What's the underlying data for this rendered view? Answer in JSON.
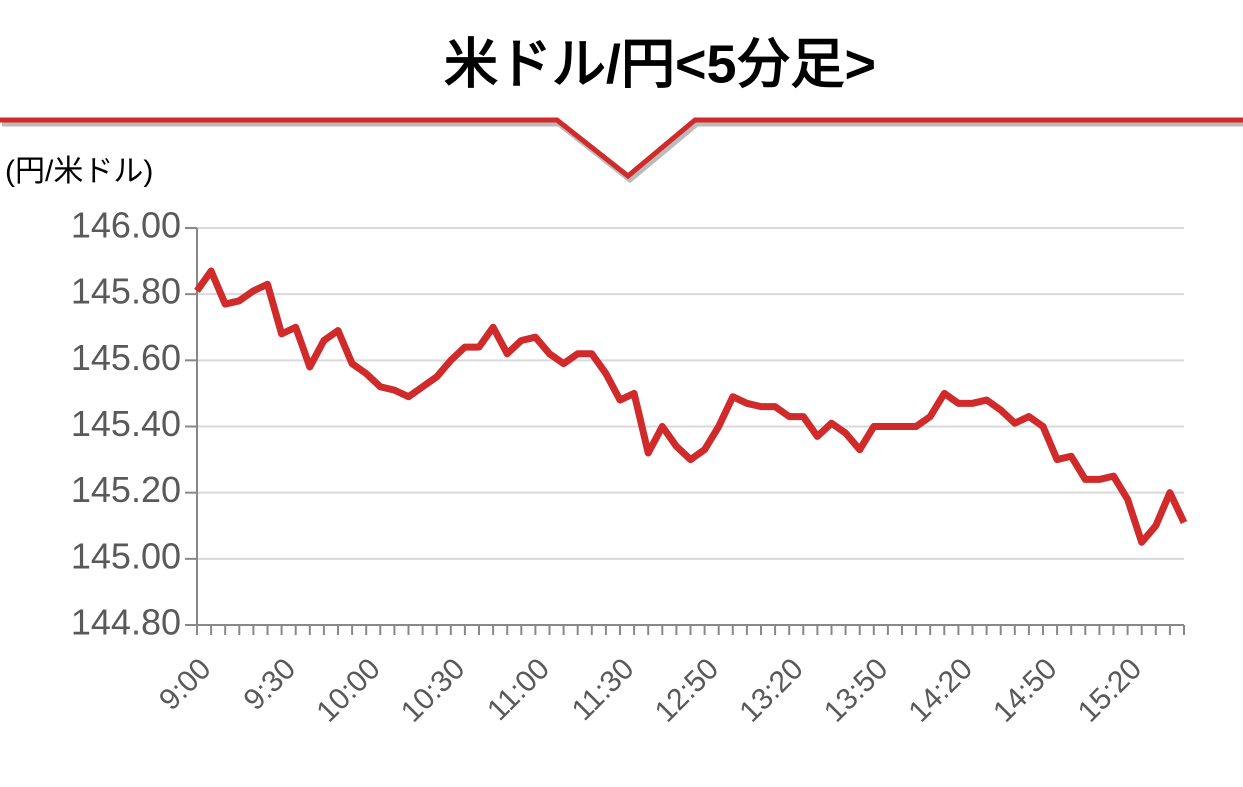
{
  "chart_data": {
    "type": "line",
    "title": "米ドル/円<5分足>",
    "y_label": "(円/米ドル)",
    "color": "#d02a2a",
    "grid": true,
    "categories": [
      "9:00",
      null,
      null,
      null,
      null,
      null,
      "9:30",
      null,
      null,
      null,
      null,
      null,
      "10:00",
      null,
      null,
      null,
      null,
      null,
      "10:30",
      null,
      null,
      null,
      null,
      null,
      "11:00",
      null,
      null,
      null,
      null,
      null,
      "11:30",
      null,
      null,
      null,
      null,
      null,
      "12:50",
      null,
      null,
      null,
      null,
      null,
      "13:20",
      null,
      null,
      null,
      null,
      null,
      "13:50",
      null,
      null,
      null,
      null,
      null,
      "14:20",
      null,
      null,
      null,
      null,
      null,
      "14:50",
      null,
      null,
      null,
      null,
      null,
      "15:20",
      null,
      null,
      null,
      null
    ],
    "values": [
      145.81,
      145.87,
      145.77,
      145.78,
      145.81,
      145.83,
      145.68,
      145.7,
      145.58,
      145.66,
      145.69,
      145.59,
      145.56,
      145.52,
      145.51,
      145.49,
      145.52,
      145.55,
      145.6,
      145.64,
      145.64,
      145.7,
      145.62,
      145.66,
      145.67,
      145.62,
      145.59,
      145.62,
      145.62,
      145.56,
      145.48,
      145.5,
      145.32,
      145.4,
      145.34,
      145.3,
      145.33,
      145.4,
      145.49,
      145.47,
      145.46,
      145.46,
      145.43,
      145.43,
      145.37,
      145.41,
      145.38,
      145.33,
      145.4,
      145.4,
      145.4,
      145.4,
      145.43,
      145.5,
      145.47,
      145.47,
      145.48,
      145.45,
      145.41,
      145.43,
      145.4,
      145.3,
      145.31,
      145.24,
      145.24,
      145.25,
      145.18,
      145.05,
      145.1,
      145.2,
      145.11
    ],
    "ylim": [
      144.8,
      146.0
    ],
    "yticks": [
      {
        "value": 144.8,
        "label": "144.80"
      },
      {
        "value": 145.0,
        "label": "145.00"
      },
      {
        "value": 145.2,
        "label": "145.20"
      },
      {
        "value": 145.4,
        "label": "145.40"
      },
      {
        "value": 145.6,
        "label": "145.60"
      },
      {
        "value": 145.8,
        "label": "145.80"
      },
      {
        "value": 146.0,
        "label": "146.00"
      }
    ]
  }
}
